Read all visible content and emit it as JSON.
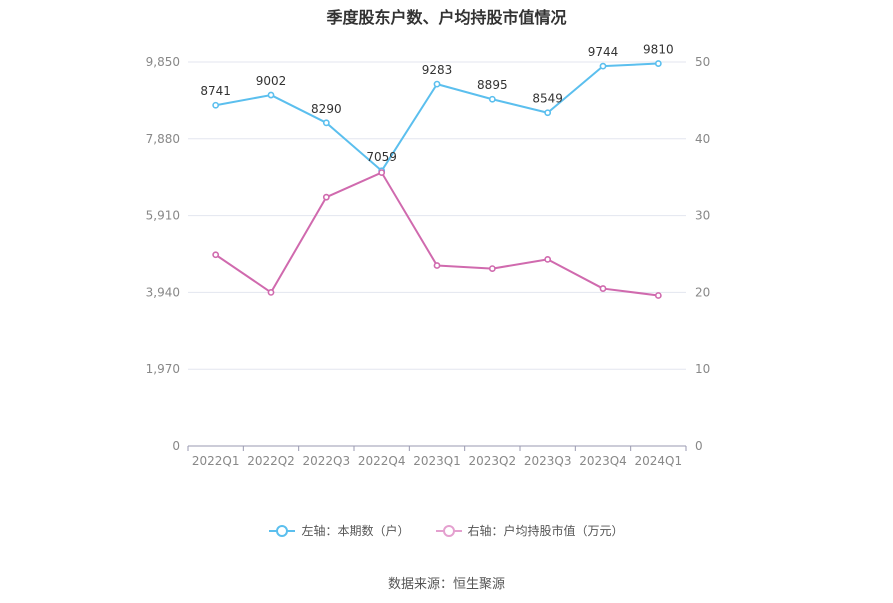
{
  "chart_data": {
    "type": "line",
    "title": "季度股东户数、户均持股市值情况",
    "categories": [
      "2022Q1",
      "2022Q2",
      "2022Q3",
      "2022Q4",
      "2023Q1",
      "2023Q2",
      "2023Q3",
      "2023Q4",
      "2024Q1"
    ],
    "left_axis": {
      "ticks": [
        "0",
        "1,970",
        "3,940",
        "5,910",
        "7,880",
        "9,850"
      ],
      "range": [
        0,
        9850
      ]
    },
    "right_axis": {
      "ticks": [
        "0",
        "10",
        "20",
        "30",
        "40",
        "50"
      ],
      "range": [
        0,
        50
      ]
    },
    "grid": true,
    "series": [
      {
        "name": "左轴：本期数（户）",
        "axis": "left",
        "color": "#5bbfee",
        "values": [
          8741,
          9002,
          8290,
          7059,
          9283,
          8895,
          8549,
          9744,
          9810
        ],
        "labels": [
          "8741",
          "9002",
          "8290",
          "7059",
          "9283",
          "8895",
          "8549",
          "9744",
          "9810"
        ]
      },
      {
        "name": "右轴：户均持股市值（万元）",
        "axis": "right",
        "color": "#d06aae",
        "values": [
          24.9,
          20.0,
          32.4,
          35.6,
          23.5,
          23.1,
          24.3,
          20.5,
          19.6
        ]
      }
    ],
    "legend_position": "bottom"
  },
  "source": "数据来源：恒生聚源"
}
